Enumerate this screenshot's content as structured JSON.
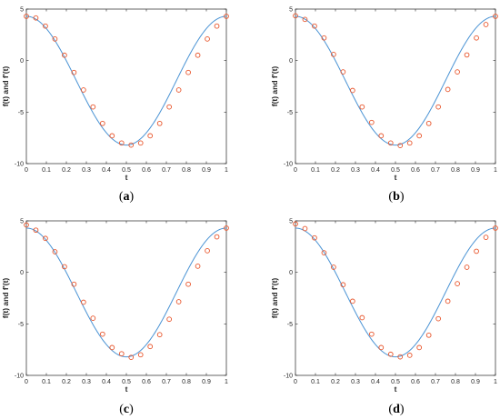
{
  "colors": {
    "line": "#4a93d4",
    "marker": "#e8542a",
    "axis": "#262626",
    "panel_bg": "#ffffff"
  },
  "chart_data": [
    {
      "type": "line",
      "caption": {
        "prefix": "(",
        "letter": "a",
        "suffix": ")"
      },
      "xlabel": "t",
      "ylabel": "f(t) and f'(t)",
      "xlim": [
        0,
        1
      ],
      "ylim": [
        -10,
        5
      ],
      "xticks": [
        0,
        0.1,
        0.2,
        0.3,
        0.4,
        0.5,
        0.6,
        0.7,
        0.8,
        0.9,
        1
      ],
      "xtick_labels": [
        "0",
        "0.1",
        "0.2",
        "0.3",
        "0.4",
        "0.5",
        "0.6",
        "0.7",
        "0.8",
        "0.9",
        "1"
      ],
      "yticks": [
        -10,
        -5,
        0,
        5
      ],
      "ytick_labels": [
        "-10",
        "-5",
        "0",
        "5"
      ],
      "grid": false,
      "series": [
        {
          "kind": "line",
          "function": "cosine",
          "amplitude": 6.25,
          "offset": -1.95,
          "range": [
            0,
            1
          ]
        },
        {
          "kind": "markers",
          "x": [
            0,
            0.0476,
            0.0952,
            0.1429,
            0.1905,
            0.2381,
            0.2857,
            0.3333,
            0.381,
            0.4286,
            0.4762,
            0.5238,
            0.5714,
            0.619,
            0.6667,
            0.7143,
            0.7619,
            0.8095,
            0.8571,
            0.9048,
            0.9524,
            1
          ],
          "y": [
            4.3,
            4.14,
            3.35,
            2.1,
            0.52,
            -1.15,
            -2.85,
            -4.5,
            -6.1,
            -7.3,
            -8.0,
            -8.2,
            -8.0,
            -7.3,
            -6.1,
            -4.5,
            -2.85,
            -1.15,
            0.52,
            2.1,
            3.35,
            4.3
          ]
        }
      ]
    },
    {
      "type": "line",
      "caption": {
        "prefix": "(",
        "letter": "b",
        "suffix": ")"
      },
      "xlabel": "t",
      "ylabel": "f(t) and f'(t)",
      "xlim": [
        0,
        1
      ],
      "ylim": [
        -10,
        5
      ],
      "xticks": [
        0,
        0.1,
        0.2,
        0.3,
        0.4,
        0.5,
        0.6,
        0.7,
        0.8,
        0.9,
        1
      ],
      "xtick_labels": [
        "0",
        "0.1",
        "0.2",
        "0.3",
        "0.4",
        "0.5",
        "0.6",
        "0.7",
        "0.8",
        "0.9",
        "1"
      ],
      "yticks": [
        -10,
        -5,
        0,
        5
      ],
      "ytick_labels": [
        "-10",
        "-5",
        "0",
        "5"
      ],
      "grid": false,
      "series": [
        {
          "kind": "line",
          "function": "cosine",
          "amplitude": 6.25,
          "offset": -1.95,
          "range": [
            0,
            1
          ]
        },
        {
          "kind": "markers",
          "x": [
            0,
            0.0476,
            0.0952,
            0.1429,
            0.1905,
            0.2381,
            0.2857,
            0.3333,
            0.381,
            0.4286,
            0.4762,
            0.5238,
            0.5714,
            0.619,
            0.6667,
            0.7143,
            0.7619,
            0.8095,
            0.8571,
            0.9048,
            0.9524,
            1
          ],
          "y": [
            4.35,
            4.0,
            3.35,
            2.2,
            0.6,
            -1.1,
            -2.9,
            -4.5,
            -6.0,
            -7.3,
            -8.0,
            -8.25,
            -8.0,
            -7.3,
            -6.1,
            -4.5,
            -2.8,
            -1.1,
            0.55,
            2.2,
            3.5,
            4.3
          ]
        }
      ]
    },
    {
      "type": "line",
      "caption": {
        "prefix": "(",
        "letter": "c",
        "suffix": ")"
      },
      "xlabel": "t",
      "ylabel": "f(t) and f'(t)",
      "xlim": [
        0,
        1
      ],
      "ylim": [
        -10,
        5
      ],
      "xticks": [
        0,
        0.1,
        0.2,
        0.3,
        0.4,
        0.5,
        0.6,
        0.7,
        0.8,
        0.9,
        1
      ],
      "xtick_labels": [
        "0",
        "0.1",
        "0.2",
        "0.3",
        "0.4",
        "0.5",
        "0.6",
        "0.7",
        "0.8",
        "0.9",
        "1"
      ],
      "yticks": [
        -10,
        -5,
        0,
        5
      ],
      "ytick_labels": [
        "-10",
        "-5",
        "0",
        "5"
      ],
      "grid": false,
      "series": [
        {
          "kind": "line",
          "function": "cosine",
          "amplitude": 6.25,
          "offset": -1.95,
          "range": [
            0,
            1
          ]
        },
        {
          "kind": "markers",
          "x": [
            0,
            0.0476,
            0.0952,
            0.1429,
            0.1905,
            0.2381,
            0.2857,
            0.3333,
            0.381,
            0.4286,
            0.4762,
            0.5238,
            0.5714,
            0.619,
            0.6667,
            0.7143,
            0.7619,
            0.8095,
            0.8571,
            0.9048,
            0.9524,
            1
          ],
          "y": [
            4.6,
            4.1,
            3.3,
            2.0,
            0.55,
            -1.15,
            -2.9,
            -4.45,
            -6.0,
            -7.3,
            -7.9,
            -8.25,
            -8.0,
            -7.2,
            -6.05,
            -4.55,
            -2.85,
            -1.15,
            0.6,
            2.1,
            3.45,
            4.3
          ]
        }
      ]
    },
    {
      "type": "line",
      "caption": {
        "prefix": "(",
        "letter": "d",
        "suffix": ")"
      },
      "xlabel": "t",
      "ylabel": "f(t) and f'(t)",
      "xlim": [
        0,
        1
      ],
      "ylim": [
        -10,
        5
      ],
      "xticks": [
        0,
        0.1,
        0.2,
        0.3,
        0.4,
        0.5,
        0.6,
        0.7,
        0.8,
        0.9,
        1
      ],
      "xtick_labels": [
        "0",
        "0.1",
        "0.2",
        "0.3",
        "0.4",
        "0.5",
        "0.6",
        "0.7",
        "0.8",
        "0.9",
        "1"
      ],
      "yticks": [
        -10,
        -5,
        0,
        5
      ],
      "ytick_labels": [
        "-10",
        "-5",
        "0",
        "5"
      ],
      "grid": false,
      "series": [
        {
          "kind": "line",
          "function": "cosine",
          "amplitude": 6.25,
          "offset": -1.95,
          "range": [
            0,
            1
          ]
        },
        {
          "kind": "markers",
          "x": [
            0,
            0.0476,
            0.0952,
            0.1429,
            0.1905,
            0.2381,
            0.2857,
            0.3333,
            0.381,
            0.4286,
            0.4762,
            0.5238,
            0.5714,
            0.619,
            0.6667,
            0.7143,
            0.7619,
            0.8095,
            0.8571,
            0.9048,
            0.9524,
            1
          ],
          "y": [
            4.7,
            4.25,
            3.35,
            1.9,
            0.5,
            -1.2,
            -2.8,
            -4.4,
            -6.0,
            -7.3,
            -7.95,
            -8.2,
            -8.05,
            -7.3,
            -6.1,
            -4.5,
            -2.8,
            -1.1,
            0.5,
            2.05,
            3.4,
            4.3
          ]
        }
      ]
    }
  ]
}
